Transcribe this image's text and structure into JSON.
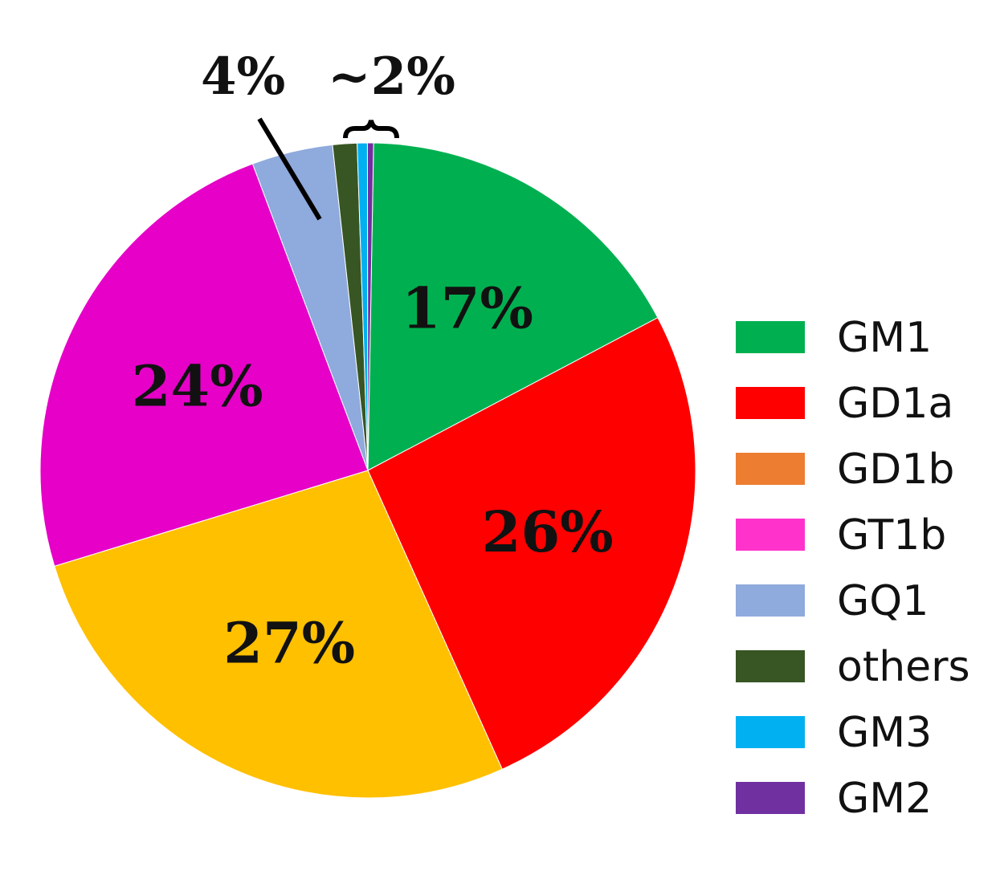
{
  "chart_data": {
    "type": "pie",
    "legend_position": "right",
    "slices": [
      {
        "name": "GM1",
        "value": 17,
        "color": "#00b050",
        "label": "17%"
      },
      {
        "name": "GD1a",
        "value": 26,
        "color": "#ff0000",
        "label": "26%"
      },
      {
        "name": "GD1b",
        "value": 27,
        "color": "#ffc000",
        "label": "27%"
      },
      {
        "name": "GT1b",
        "value": 24,
        "color": "#e600c8",
        "label": "24%"
      },
      {
        "name": "GQ1",
        "value": 4,
        "color": "#8faadc",
        "label": ""
      },
      {
        "name": "others",
        "value": 1.2,
        "color": "#375623",
        "label": ""
      },
      {
        "name": "GM3",
        "value": 0.5,
        "color": "#00b0f0",
        "label": ""
      },
      {
        "name": "GM2",
        "value": 0.3,
        "color": "#7030a0",
        "label": ""
      }
    ],
    "legend": [
      {
        "name": "GM1",
        "color": "#00b050"
      },
      {
        "name": "GD1a",
        "color": "#ff0000"
      },
      {
        "name": "GD1b",
        "color": "#ed7d31"
      },
      {
        "name": "GT1b",
        "color": "#ff33cc"
      },
      {
        "name": "GQ1",
        "color": "#8faadc"
      },
      {
        "name": "others",
        "color": "#375623"
      },
      {
        "name": "GM3",
        "color": "#00b0f0"
      },
      {
        "name": "GM2",
        "color": "#7030a0"
      }
    ],
    "callouts": [
      {
        "text": "4%",
        "target": "GQ1"
      },
      {
        "text": "~2%",
        "target": "others+GM3+GM2"
      }
    ]
  }
}
